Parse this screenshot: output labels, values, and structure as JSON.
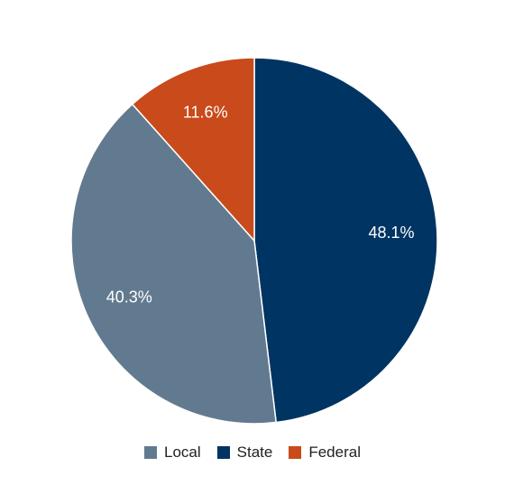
{
  "chart_data": {
    "type": "pie",
    "title": "",
    "slices": [
      {
        "label": "State",
        "value": 48.1,
        "value_label": "48.1%",
        "color": "#003462"
      },
      {
        "label": "Local",
        "value": 40.3,
        "value_label": "40.3%",
        "color": "#627a90"
      },
      {
        "label": "Federal",
        "value": 11.6,
        "value_label": "11.6%",
        "color": "#c94a1b"
      }
    ],
    "start": "12 o'clock",
    "direction": "clockwise",
    "legend": {
      "position": "bottom",
      "entries": [
        {
          "label": "Local",
          "color": "#627a90"
        },
        {
          "label": "State",
          "color": "#003462"
        },
        {
          "label": "Federal",
          "color": "#c94a1b"
        }
      ]
    }
  }
}
